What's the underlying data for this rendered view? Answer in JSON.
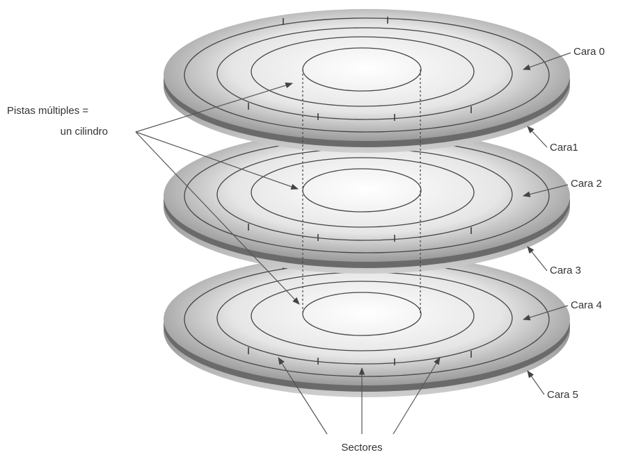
{
  "cylinder_label": {
    "line1": "Pistas múltiples =",
    "line2": "un cilindro"
  },
  "faces": [
    "Cara 0",
    "Cara1",
    "Cara 2",
    "Cara 3",
    "Cara 4",
    "Cara 5"
  ],
  "sectors_label": "Sectores"
}
